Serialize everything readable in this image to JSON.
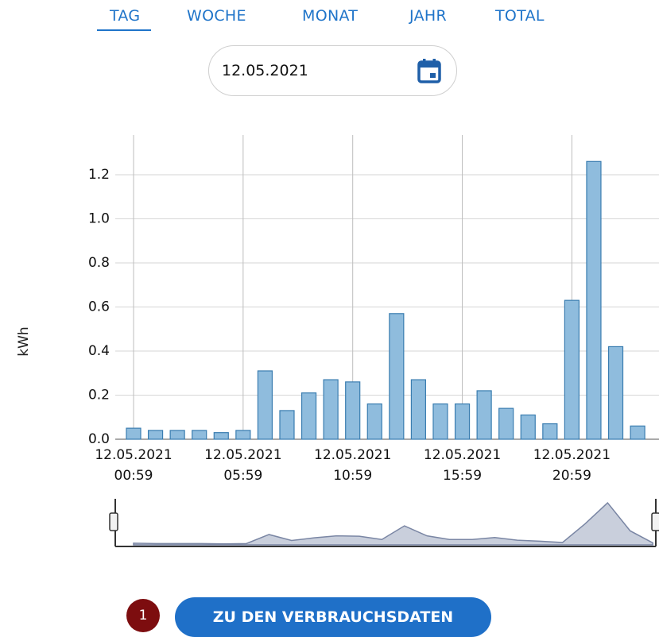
{
  "tabs": [
    "TAG",
    "WOCHE",
    "MONAT",
    "JAHR",
    "TOTAL"
  ],
  "selected_tab": "TAG",
  "date": "12.05.2021",
  "chart_data": {
    "type": "bar",
    "y_label": "kWh",
    "categories": [
      "12.05.2021\n00:59",
      null,
      null,
      null,
      null,
      "12.05.2021\n05:59",
      null,
      null,
      null,
      null,
      "12.05.2021\n10:59",
      null,
      null,
      null,
      null,
      "12.05.2021\n15:59",
      null,
      null,
      null,
      null,
      "12.05.2021\n20:59",
      null,
      null,
      null
    ],
    "values": [
      0.05,
      0.04,
      0.04,
      0.04,
      0.03,
      0.04,
      0.31,
      0.13,
      0.21,
      0.27,
      0.26,
      0.16,
      0.57,
      0.27,
      0.16,
      0.16,
      0.22,
      0.14,
      0.11,
      0.07,
      0.63,
      1.26,
      0.42,
      0.06
    ],
    "color": "#8fbcdd",
    "edge_color": "#3a7db0",
    "ylim": [
      0,
      1.38
    ],
    "yticks": [
      {
        "value": 0,
        "label": "0.0"
      },
      0.2,
      0.4,
      0.6,
      0.8,
      {
        "value": 1,
        "label": "1.0"
      },
      1.2
    ],
    "grid": true,
    "navigator": true
  },
  "badge": "1",
  "button": "ZU DEN VERBRAUCHSDATEN"
}
